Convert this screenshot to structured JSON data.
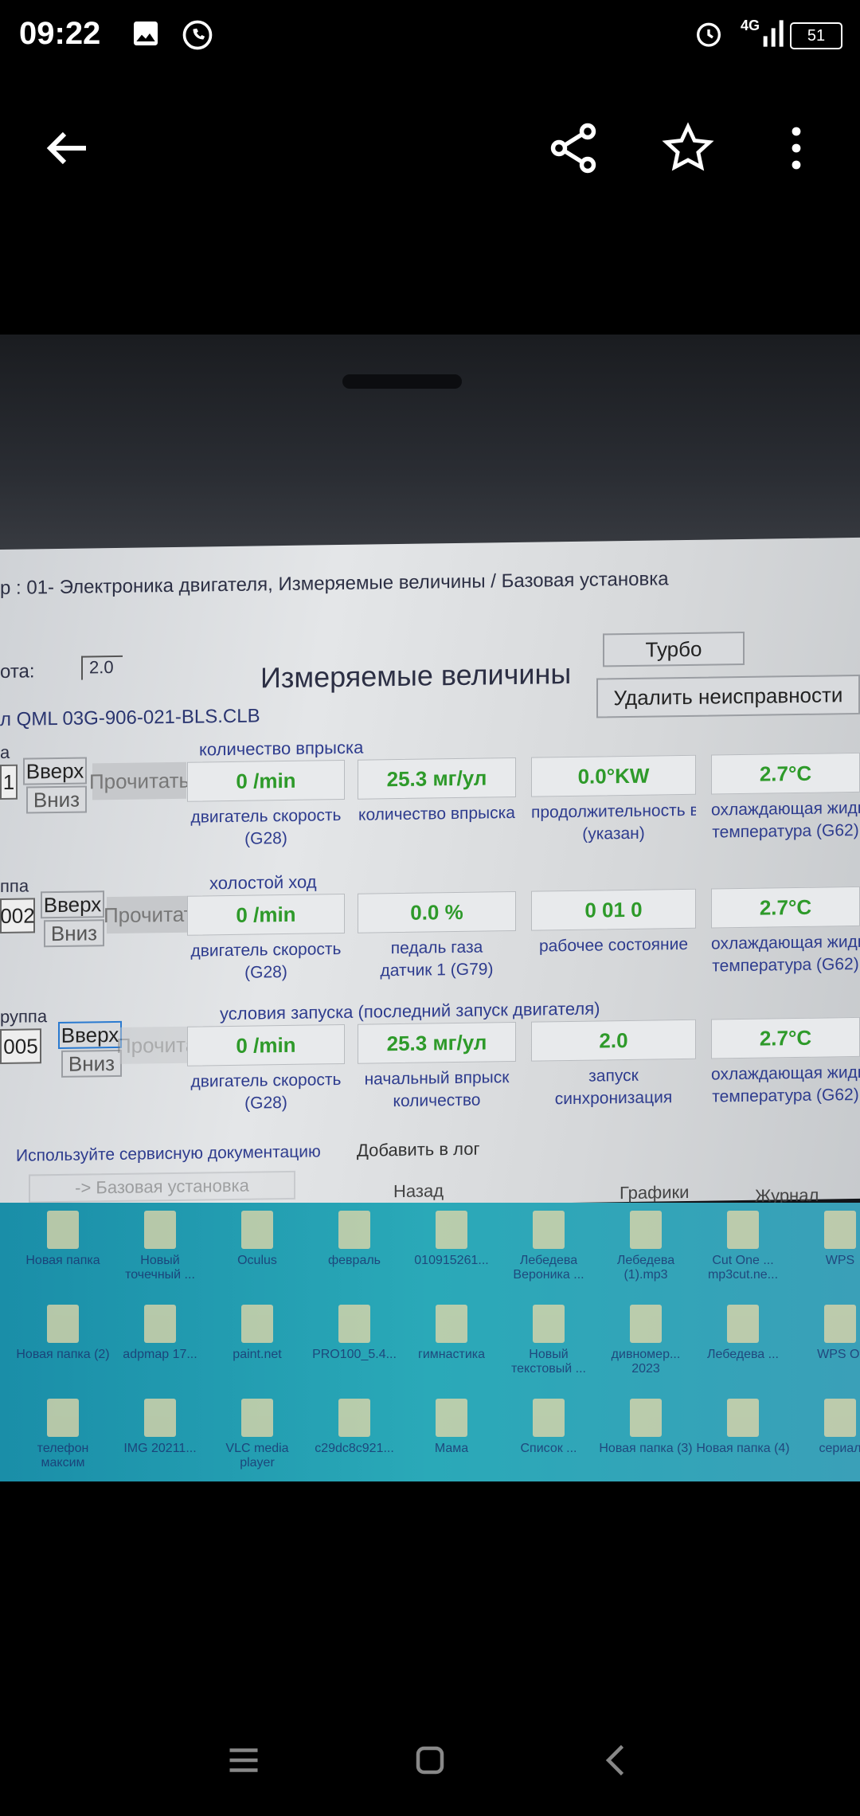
{
  "status": {
    "time": "09:22",
    "network": "4G",
    "battery": "51",
    "icons": [
      "image-icon",
      "whatsapp-icon",
      "alarm-icon",
      "signal-icon",
      "battery-icon"
    ]
  },
  "toolbar": {
    "icons": [
      "back-arrow-icon",
      "share-icon",
      "star-icon",
      "more-vert-icon"
    ]
  },
  "app": {
    "title": "р : 01- Электроника двигателя,  Измеряемые величины / Базовая установка",
    "version_label": "ота:",
    "version_value": "2.0",
    "heading": "Измеряемые величины",
    "qml": "л QML 03G-906-021-BLS.CLB",
    "turbo": "Турбо",
    "clear_faults": "Удалить неисправности",
    "up": "Вверх",
    "down": "Вниз",
    "read": "Прочитать",
    "groups": [
      {
        "label": "а",
        "number": "1",
        "name": "количество впрыска",
        "values": [
          "0 /min",
          "25.3 мг/ул",
          "0.0°KW",
          "2.7°C"
        ],
        "labels": [
          [
            "двигатель скорость",
            "(G28)"
          ],
          [
            "количество впрыска",
            ""
          ],
          [
            "продолжительность впр",
            "(указан)"
          ],
          [
            "охлаждающая жидк",
            "температура (G62)"
          ]
        ]
      },
      {
        "label": "ппа",
        "number": "002",
        "name": "холостой ход",
        "values": [
          "0 /min",
          "0.0 %",
          "0 01  0",
          "2.7°C"
        ],
        "labels": [
          [
            "двигатель скорость",
            "(G28)"
          ],
          [
            "педаль газа",
            "датчик 1 (G79)"
          ],
          [
            "рабочее состояние",
            ""
          ],
          [
            "охлаждающая жидко",
            "температура (G62)"
          ]
        ]
      },
      {
        "label": "руппа",
        "number": "005",
        "name": "условия запуска (последний запуск двигателя)",
        "values": [
          "0 /min",
          "25.3 мг/ул",
          "2.0",
          "2.7°C"
        ],
        "labels": [
          [
            "двигатель скорость",
            "(G28)"
          ],
          [
            "начальный впрыск",
            "количество"
          ],
          [
            "запуск",
            "синхронизация"
          ],
          [
            "охлаждающая жидко",
            "температура (G62)"
          ]
        ]
      }
    ],
    "doc_hint": "Используйте сервисную документацию",
    "add_log": "Добавить в лог",
    "basic_setting": "-> Базовая установка",
    "back": "Назад",
    "graphs": "Графики",
    "journal": "Журнал"
  },
  "desktop": [
    "Новая папка",
    "Новый точечный ...",
    "Oculus",
    "февраль",
    "010915261...",
    "Лебедева Вероника ...",
    "Лебедева (1).mp3",
    "Cut One ... mp3cut.ne...",
    "WPS",
    "Новая папка (2)",
    "adpmap 17...",
    "paint.net",
    "PRO100_5.4...",
    "гимнастика",
    "Новый текстовый ...",
    "дивномер... 2023",
    "Лебедева ...",
    "WPS Of",
    "телефон максим",
    "IMG 20211...",
    "VLC media player",
    "c29dc8c921...",
    "Мама",
    "Список ...",
    "Новая папка (3)",
    "Новая папка (4)",
    "сериал"
  ],
  "navbar": {
    "icons": [
      "recent-apps-icon",
      "home-icon",
      "back-icon"
    ]
  }
}
